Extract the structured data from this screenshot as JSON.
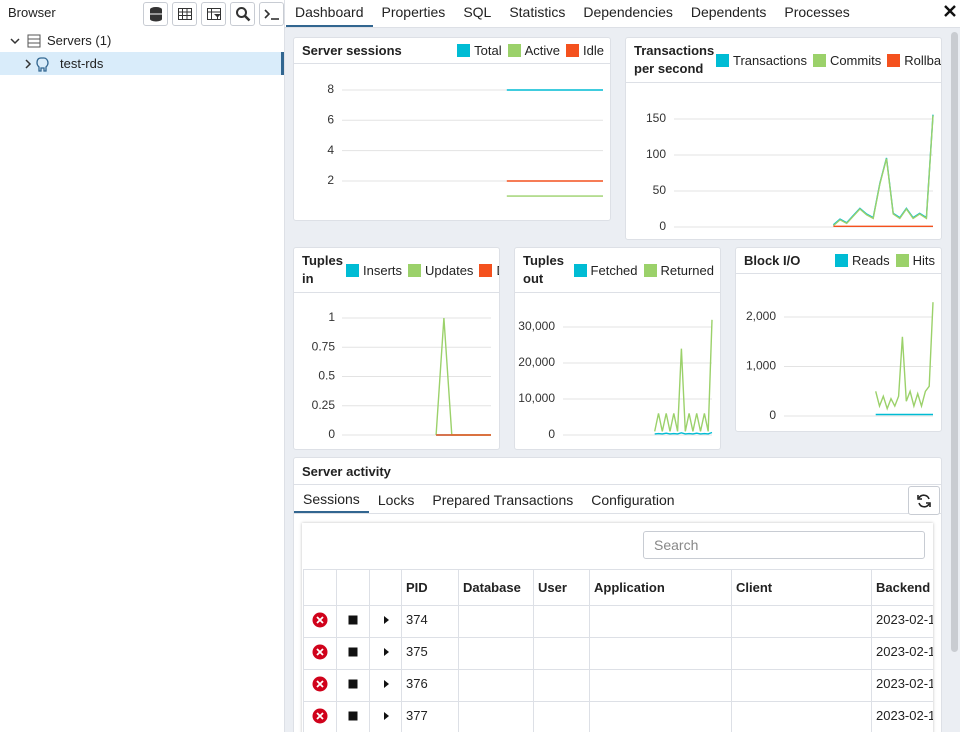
{
  "browser": {
    "title": "Browser",
    "tree": [
      "Servers (1)",
      "test-rds"
    ]
  },
  "tabs": [
    "Dashboard",
    "Properties",
    "SQL",
    "Statistics",
    "Dependencies",
    "Dependents",
    "Processes"
  ],
  "charts": [
    {
      "type": "line",
      "title": "Server sessions",
      "ylim": [
        0,
        9
      ],
      "yticks": [
        2,
        4,
        6,
        8
      ],
      "grid": true,
      "series": [
        {
          "name": "Total",
          "color": "#00bcd4",
          "values": [
            null,
            null,
            null,
            null,
            null,
            null,
            null,
            null,
            null,
            null,
            null,
            null,
            8,
            8,
            8,
            8,
            8,
            8,
            8,
            8
          ]
        },
        {
          "name": "Active",
          "color": "#9bd16a",
          "values": [
            null,
            null,
            null,
            null,
            null,
            null,
            null,
            null,
            null,
            null,
            null,
            null,
            1,
            1,
            1,
            1,
            1,
            1,
            1,
            1
          ]
        },
        {
          "name": "Idle",
          "color": "#f4511e",
          "values": [
            null,
            null,
            null,
            null,
            null,
            null,
            null,
            null,
            null,
            null,
            null,
            null,
            2,
            2,
            2,
            2,
            2,
            2,
            2,
            2
          ]
        }
      ]
    },
    {
      "type": "line",
      "title": "Transactions per second",
      "ylim": [
        0,
        160
      ],
      "yticks": [
        0,
        50,
        100,
        150
      ],
      "grid": true,
      "series": [
        {
          "name": "Transactions",
          "color": "#00bcd4",
          "values": [
            null,
            null,
            null,
            null,
            null,
            null,
            null,
            null,
            null,
            null,
            null,
            null,
            null,
            null,
            null,
            null,
            null,
            null,
            null,
            null,
            null,
            null,
            null,
            null,
            3,
            11,
            6,
            16,
            26,
            18,
            13,
            61,
            96,
            19,
            13,
            26,
            13,
            19,
            13,
            156
          ]
        },
        {
          "name": "Commits",
          "color": "#9bd16a",
          "values": [
            null,
            null,
            null,
            null,
            null,
            null,
            null,
            null,
            null,
            null,
            null,
            null,
            null,
            null,
            null,
            null,
            null,
            null,
            null,
            null,
            null,
            null,
            null,
            null,
            2,
            10,
            5,
            15,
            25,
            17,
            12,
            60,
            95,
            18,
            12,
            25,
            12,
            18,
            12,
            155
          ]
        },
        {
          "name": "Rollbacks",
          "color": "#f4511e",
          "values": [
            null,
            null,
            null,
            null,
            null,
            null,
            null,
            null,
            null,
            null,
            null,
            null,
            null,
            null,
            null,
            null,
            null,
            null,
            null,
            null,
            null,
            null,
            null,
            null,
            1,
            1,
            1,
            1,
            1,
            1,
            1,
            1,
            1,
            1,
            1,
            1,
            1,
            1,
            1,
            1
          ]
        }
      ]
    },
    {
      "type": "line",
      "title": "Tuples in",
      "ylim": [
        0,
        1.1
      ],
      "yticks": [
        0,
        0.25,
        0.5,
        0.75,
        1
      ],
      "grid": true,
      "series": [
        {
          "name": "Inserts",
          "color": "#00bcd4",
          "values": [
            null,
            null,
            null,
            null,
            null,
            null,
            null,
            null,
            null,
            null,
            null,
            null,
            0,
            0,
            0,
            0,
            0,
            0,
            0,
            0
          ]
        },
        {
          "name": "Updates",
          "color": "#9bd16a",
          "values": [
            null,
            null,
            null,
            null,
            null,
            null,
            null,
            null,
            null,
            null,
            null,
            null,
            0,
            1,
            0,
            0,
            0,
            0,
            0,
            0
          ]
        },
        {
          "name": "Deletes",
          "color": "#f4511e",
          "values": [
            null,
            null,
            null,
            null,
            null,
            null,
            null,
            null,
            null,
            null,
            null,
            null,
            0,
            0,
            0,
            0,
            0,
            0,
            0,
            0
          ]
        }
      ]
    },
    {
      "type": "line",
      "title": "Tuples out",
      "ylim": [
        0,
        37000
      ],
      "yticks": [
        0,
        {
          "value": 10000,
          "label": "10,000"
        },
        {
          "value": 20000,
          "label": "20,000"
        },
        {
          "value": 30000,
          "label": "30,000"
        }
      ],
      "grid": true,
      "series": [
        {
          "name": "Fetched",
          "color": "#00bcd4",
          "values": [
            null,
            null,
            null,
            null,
            null,
            null,
            null,
            null,
            null,
            null,
            null,
            null,
            null,
            null,
            null,
            null,
            null,
            null,
            null,
            null,
            null,
            null,
            null,
            null,
            300,
            400,
            300,
            500,
            300,
            400,
            300,
            600,
            300,
            400,
            300,
            500,
            300,
            400,
            300,
            700
          ]
        },
        {
          "name": "Returned",
          "color": "#9bd16a",
          "values": [
            null,
            null,
            null,
            null,
            null,
            null,
            null,
            null,
            null,
            null,
            null,
            null,
            null,
            null,
            null,
            null,
            null,
            null,
            null,
            null,
            null,
            null,
            null,
            null,
            1000,
            6000,
            1000,
            6000,
            1000,
            6000,
            1000,
            24000,
            1000,
            6000,
            1000,
            6000,
            1000,
            6000,
            1000,
            32000
          ]
        }
      ]
    },
    {
      "type": "line",
      "title": "Block I/O",
      "ylim": [
        0,
        2600
      ],
      "yticks": [
        0,
        {
          "value": 1000,
          "label": "1,000"
        },
        {
          "value": 2000,
          "label": "2,000"
        }
      ],
      "grid": true,
      "series": [
        {
          "name": "Reads",
          "color": "#00bcd4",
          "values": [
            null,
            null,
            null,
            null,
            null,
            null,
            null,
            null,
            null,
            null,
            null,
            null,
            null,
            null,
            null,
            null,
            null,
            null,
            null,
            null,
            null,
            null,
            null,
            null,
            30,
            30,
            30,
            30,
            30,
            30,
            30,
            30,
            30,
            30,
            30,
            30,
            30,
            30,
            30,
            30
          ]
        },
        {
          "name": "Hits",
          "color": "#9bd16a",
          "values": [
            null,
            null,
            null,
            null,
            null,
            null,
            null,
            null,
            null,
            null,
            null,
            null,
            null,
            null,
            null,
            null,
            null,
            null,
            null,
            null,
            null,
            null,
            null,
            null,
            500,
            200,
            400,
            150,
            350,
            200,
            400,
            1600,
            300,
            500,
            200,
            450,
            200,
            500,
            600,
            2300
          ]
        }
      ]
    }
  ],
  "activity": {
    "title": "Server activity",
    "tabs": [
      "Sessions",
      "Locks",
      "Prepared Transactions",
      "Configuration"
    ],
    "search_placeholder": "Search",
    "columns": [
      "PID",
      "Database",
      "User",
      "Application",
      "Client",
      "Backend start"
    ],
    "rows": [
      {
        "pid": 374,
        "backend_start": "2023-02-1"
      },
      {
        "pid": 375,
        "backend_start": "2023-02-1"
      },
      {
        "pid": 376,
        "backend_start": "2023-02-1"
      },
      {
        "pid": 377,
        "backend_start": "2023-02-1"
      }
    ]
  }
}
